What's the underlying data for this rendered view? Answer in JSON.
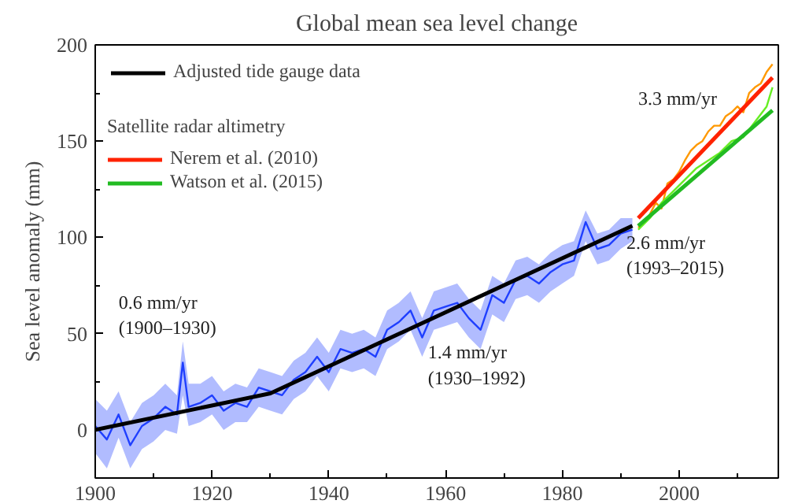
{
  "chart_data": {
    "type": "line",
    "title": "Global mean sea level change",
    "ylabel": "Sea level anomaly (mm)",
    "legend_title": "Satellite radar altimetry",
    "xlim": [
      1900,
      2017
    ],
    "ylim": [
      -25,
      200
    ],
    "xticks": [
      1900,
      1920,
      1940,
      1960,
      1980,
      2000
    ],
    "yticks": [
      0,
      50,
      100,
      150,
      200
    ],
    "grid": false,
    "legend": "top left",
    "marker": "none",
    "line_style": "solid",
    "series": [
      {
        "color": "#1f3fff",
        "x": [
          1900,
          1902,
          1904,
          1906,
          1908,
          1910,
          1912,
          1914,
          1915,
          1916,
          1918,
          1920,
          1922,
          1924,
          1926,
          1928,
          1930,
          1932,
          1934,
          1936,
          1938,
          1940,
          1942,
          1944,
          1946,
          1948,
          1950,
          1952,
          1954,
          1956,
          1958,
          1960,
          1962,
          1964,
          1966,
          1968,
          1970,
          1972,
          1974,
          1976,
          1978,
          1980,
          1982,
          1984,
          1986,
          1988,
          1990,
          1992
        ],
        "values": [
          2,
          -5,
          8,
          -8,
          2,
          6,
          12,
          8,
          35,
          12,
          14,
          18,
          10,
          14,
          12,
          22,
          20,
          18,
          26,
          30,
          38,
          30,
          42,
          40,
          42,
          38,
          52,
          56,
          62,
          48,
          62,
          64,
          66,
          58,
          52,
          70,
          66,
          78,
          80,
          76,
          82,
          86,
          88,
          108,
          94,
          96,
          102,
          104
        ],
        "lower": [
          -12,
          -20,
          -4,
          -20,
          -10,
          -6,
          0,
          -2,
          18,
          2,
          4,
          8,
          0,
          4,
          4,
          12,
          10,
          8,
          16,
          20,
          28,
          20,
          32,
          30,
          32,
          28,
          42,
          46,
          52,
          38,
          52,
          54,
          56,
          48,
          42,
          60,
          56,
          68,
          70,
          66,
          72,
          76,
          80,
          98,
          86,
          88,
          94,
          98
        ],
        "upper": [
          16,
          10,
          20,
          4,
          14,
          18,
          24,
          18,
          46,
          24,
          24,
          28,
          20,
          24,
          22,
          32,
          30,
          28,
          36,
          40,
          48,
          40,
          52,
          50,
          52,
          48,
          62,
          66,
          72,
          58,
          72,
          74,
          76,
          68,
          62,
          80,
          76,
          88,
          90,
          86,
          92,
          96,
          98,
          114,
          102,
          104,
          110,
          110
        ]
      },
      {
        "color": "#ff9900",
        "x": [
          1993,
          1994,
          1995,
          1996,
          1997,
          1998,
          1999,
          2000,
          2001,
          2002,
          2003,
          2004,
          2005,
          2006,
          2007,
          2008,
          2009,
          2010,
          2011,
          2012,
          2013,
          2014,
          2015,
          2016
        ],
        "values": [
          105,
          108,
          112,
          118,
          115,
          128,
          130,
          134,
          140,
          145,
          148,
          150,
          155,
          158,
          158,
          163,
          165,
          168,
          165,
          175,
          178,
          180,
          186,
          190
        ]
      },
      {
        "color": "#66ee22",
        "x": [
          1993,
          1995,
          1997,
          1999,
          2001,
          2003,
          2005,
          2007,
          2009,
          2011,
          2013,
          2015,
          2016
        ],
        "values": [
          104,
          110,
          118,
          124,
          130,
          136,
          140,
          144,
          150,
          152,
          160,
          168,
          178
        ]
      },
      {
        "name": "Adjusted tide gauge data",
        "color": "#000000",
        "x": [
          1900,
          1930,
          1992
        ],
        "values": [
          0,
          19,
          106
        ]
      },
      {
        "name": "Nerem et al. (2010)",
        "color": "#ff2200",
        "x": [
          1993,
          2016
        ],
        "values": [
          110,
          183
        ]
      },
      {
        "name": "Watson et al. (2015)",
        "color": "#22bb22",
        "x": [
          1993,
          2016
        ],
        "values": [
          106,
          166
        ]
      }
    ],
    "annotations": [
      "0.6 mm/yr\n(1900–1930)",
      "1.4 mm/yr\n(1930–1992)",
      "2.6 mm/yr\n(1993–2015)",
      "3.3 mm/yr"
    ]
  }
}
